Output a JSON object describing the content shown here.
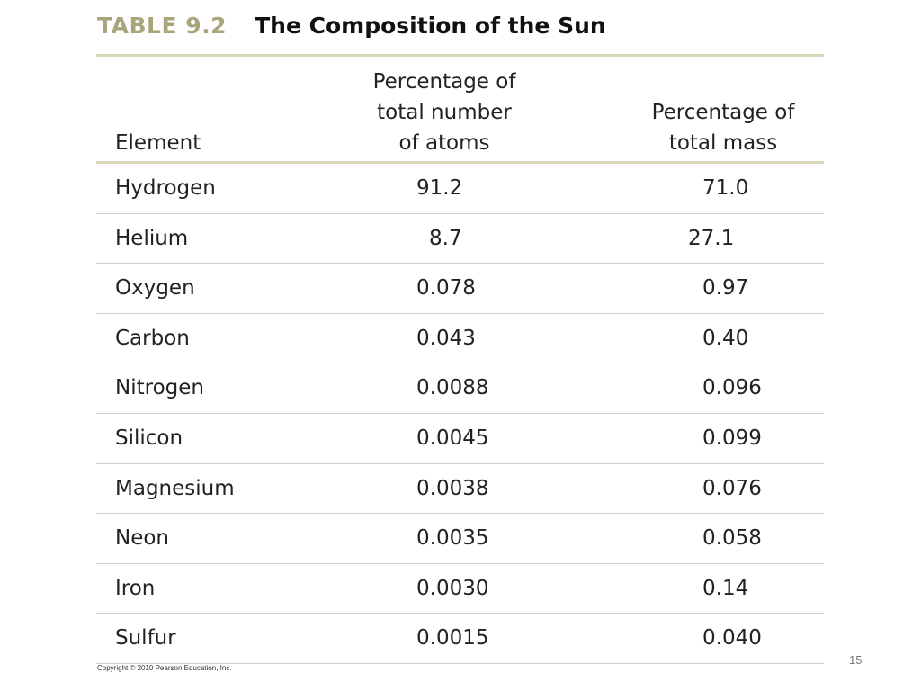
{
  "title": {
    "label": "TABLE 9.2",
    "text": "The Composition of the Sun"
  },
  "columns": {
    "element": "Element",
    "atoms_1": "Percentage of",
    "atoms_2": "total number",
    "atoms_3": "of atoms",
    "mass_1": "Percentage of",
    "mass_2": "total mass"
  },
  "rows": [
    {
      "element": "Hydrogen",
      "atoms": "91.2",
      "mass": "71.0"
    },
    {
      "element": "Helium",
      "atoms": "8.7",
      "mass": "27.1"
    },
    {
      "element": "Oxygen",
      "atoms": "0.078",
      "mass": "0.97"
    },
    {
      "element": "Carbon",
      "atoms": "0.043",
      "mass": "0.40"
    },
    {
      "element": "Nitrogen",
      "atoms": "0.0088",
      "mass": "0.096"
    },
    {
      "element": "Silicon",
      "atoms": "0.0045",
      "mass": "0.099"
    },
    {
      "element": "Magnesium",
      "atoms": "0.0038",
      "mass": "0.076"
    },
    {
      "element": "Neon",
      "atoms": "0.0035",
      "mass": "0.058"
    },
    {
      "element": "Iron",
      "atoms": "0.0030",
      "mass": "0.14"
    },
    {
      "element": "Sulfur",
      "atoms": "0.0015",
      "mass": "0.040"
    }
  ],
  "copyright": "Copyright © 2010 Pearson Education, Inc.",
  "page_number": "15"
}
